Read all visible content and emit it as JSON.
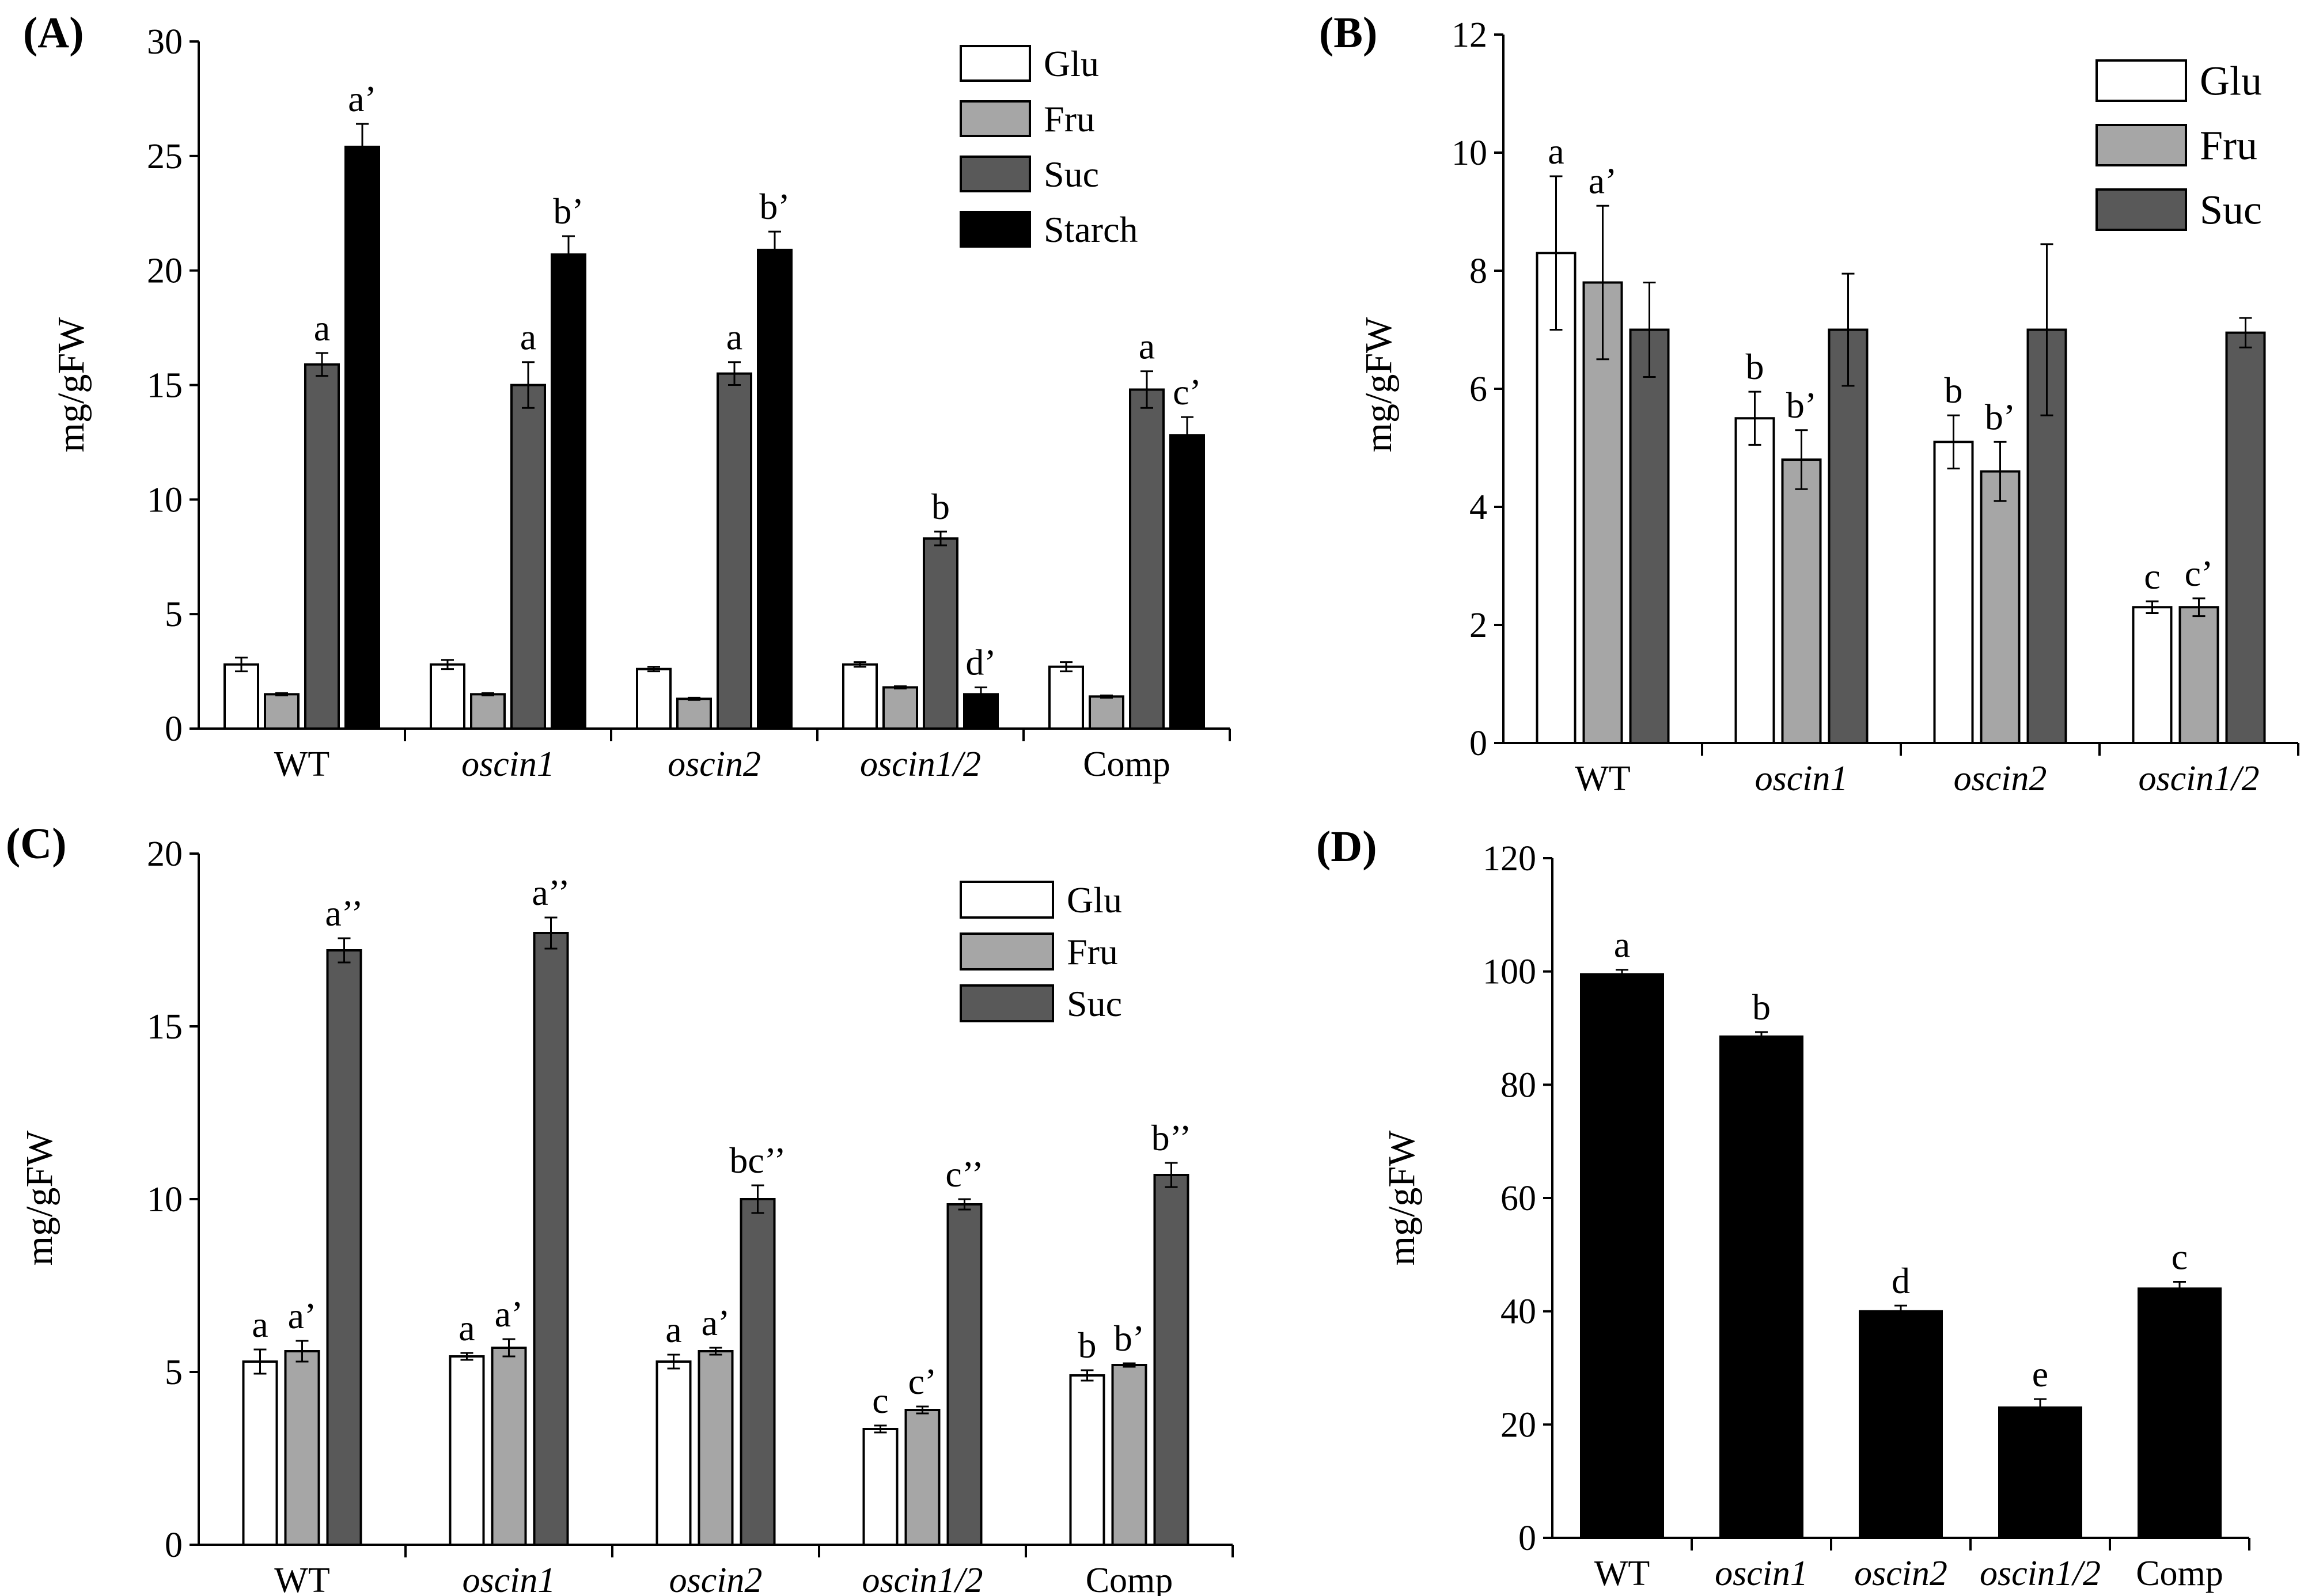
{
  "colors": {
    "Glu": "#ffffff",
    "Fru": "#a6a6a6",
    "Suc": "#595959",
    "Starch": "#000000",
    "axis": "#000000"
  },
  "chart_data": [
    {
      "id": "A",
      "panel_label": "(A)",
      "type": "bar",
      "ylabel": "mg/gFW",
      "ylim": [
        0,
        30
      ],
      "yticks": [
        0,
        5,
        10,
        15,
        20,
        25,
        30
      ],
      "categories": [
        "WT",
        "oscin1",
        "oscin2",
        "oscin1/2",
        "Comp"
      ],
      "italic_categories": [
        false,
        true,
        true,
        true,
        false
      ],
      "legend": {
        "position": "top-right",
        "entries": [
          "Glu",
          "Fru",
          "Suc",
          "Starch"
        ]
      },
      "series": [
        {
          "name": "Glu",
          "values": [
            2.8,
            2.8,
            2.6,
            2.8,
            2.7
          ],
          "errors": [
            0.3,
            0.2,
            0.1,
            0.1,
            0.2
          ],
          "annotations": [
            "",
            "",
            "",
            "",
            ""
          ]
        },
        {
          "name": "Fru",
          "values": [
            1.5,
            1.5,
            1.3,
            1.8,
            1.4
          ],
          "errors": [
            0.05,
            0.05,
            0.05,
            0.05,
            0.05
          ],
          "annotations": [
            "",
            "",
            "",
            "",
            ""
          ]
        },
        {
          "name": "Suc",
          "values": [
            15.9,
            15.0,
            15.5,
            8.3,
            14.8
          ],
          "errors": [
            0.5,
            1.0,
            0.5,
            0.3,
            0.8
          ],
          "annotations": [
            "a",
            "a",
            "a",
            "b",
            "a"
          ]
        },
        {
          "name": "Starch",
          "values": [
            25.4,
            20.7,
            20.9,
            1.5,
            12.8
          ],
          "errors": [
            1.0,
            0.8,
            0.8,
            0.3,
            0.8
          ],
          "annotations": [
            "a’",
            "b’",
            "b’",
            "d’",
            "c’"
          ]
        }
      ]
    },
    {
      "id": "B",
      "panel_label": "(B)",
      "type": "bar",
      "ylabel": "mg/gFW",
      "ylim": [
        0,
        12
      ],
      "yticks": [
        0,
        2,
        4,
        6,
        8,
        10,
        12
      ],
      "categories": [
        "WT",
        "oscin1",
        "oscin2",
        "oscin1/2"
      ],
      "italic_categories": [
        false,
        true,
        true,
        true
      ],
      "legend": {
        "position": "top-right",
        "entries": [
          "Glu",
          "Fru",
          "Suc"
        ]
      },
      "series": [
        {
          "name": "Glu",
          "values": [
            8.3,
            5.5,
            5.1,
            2.3
          ],
          "errors": [
            1.3,
            0.45,
            0.45,
            0.1
          ],
          "annotations": [
            "a",
            "b",
            "b",
            "c"
          ]
        },
        {
          "name": "Fru",
          "values": [
            7.8,
            4.8,
            4.6,
            2.3
          ],
          "errors": [
            1.3,
            0.5,
            0.5,
            0.15
          ],
          "annotations": [
            "a’",
            "b’",
            "b’",
            "c’"
          ]
        },
        {
          "name": "Suc",
          "values": [
            7.0,
            7.0,
            7.0,
            6.95
          ],
          "errors": [
            0.8,
            0.95,
            1.45,
            0.25
          ],
          "annotations": [
            "",
            "",
            "",
            ""
          ]
        }
      ]
    },
    {
      "id": "C",
      "panel_label": "(C)",
      "type": "bar",
      "ylabel": "mg/gFW",
      "ylim": [
        0,
        20
      ],
      "yticks": [
        0,
        5,
        10,
        15,
        20
      ],
      "categories": [
        "WT",
        "oscin1",
        "oscin2",
        "oscin1/2",
        "Comp"
      ],
      "italic_categories": [
        false,
        true,
        true,
        true,
        false
      ],
      "legend": {
        "position": "top-right",
        "entries": [
          "Glu",
          "Fru",
          "Suc"
        ]
      },
      "series": [
        {
          "name": "Glu",
          "values": [
            5.3,
            5.45,
            5.3,
            3.35,
            4.9
          ],
          "errors": [
            0.35,
            0.1,
            0.2,
            0.1,
            0.15
          ],
          "annotations": [
            "a",
            "a",
            "a",
            "c",
            "b"
          ]
        },
        {
          "name": "Fru",
          "values": [
            5.6,
            5.7,
            5.6,
            3.9,
            5.2
          ],
          "errors": [
            0.3,
            0.25,
            0.1,
            0.1,
            0.05
          ],
          "annotations": [
            "a’",
            "a’",
            "a’",
            "c’",
            "b’"
          ]
        },
        {
          "name": "Suc",
          "values": [
            17.2,
            17.7,
            10.0,
            9.85,
            10.7
          ],
          "errors": [
            0.35,
            0.45,
            0.4,
            0.15,
            0.35
          ],
          "annotations": [
            "a’’",
            "a’’",
            "bc’’",
            "c’’",
            "b’’"
          ]
        }
      ]
    },
    {
      "id": "D",
      "panel_label": "(D)",
      "type": "bar",
      "ylabel": "mg/gFW",
      "ylim": [
        0,
        120
      ],
      "yticks": [
        0,
        20,
        40,
        60,
        80,
        100,
        120
      ],
      "categories": [
        "WT",
        "oscin1",
        "oscin2",
        "oscin1/2",
        "Comp"
      ],
      "italic_categories": [
        false,
        true,
        true,
        true,
        false
      ],
      "legend": null,
      "series": [
        {
          "name": "Starch",
          "values": [
            99.5,
            88.5,
            40.0,
            23.0,
            44.0
          ],
          "errors": [
            0.8,
            0.8,
            1.0,
            1.5,
            1.2
          ],
          "annotations": [
            "a",
            "b",
            "d",
            "e",
            "c"
          ]
        }
      ]
    }
  ]
}
